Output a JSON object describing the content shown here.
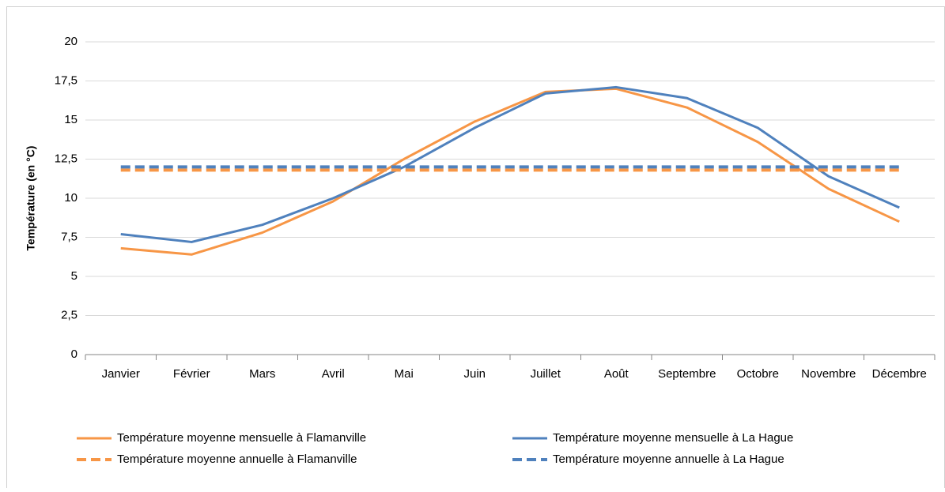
{
  "chart_data": {
    "type": "line",
    "ylabel": "Température (en °C)",
    "categories": [
      "Janvier",
      "Février",
      "Mars",
      "Avril",
      "Mai",
      "Juin",
      "Juillet",
      "Août",
      "Septembre",
      "Octobre",
      "Novembre",
      "Décembre"
    ],
    "series": [
      {
        "name": "Température moyenne mensuelle à Flamanville",
        "color": "#f79646",
        "dash": false,
        "values": [
          6.8,
          6.4,
          7.8,
          9.8,
          12.5,
          14.9,
          16.8,
          17.0,
          15.8,
          13.6,
          10.6,
          8.5
        ]
      },
      {
        "name": "Température moyenne mensuelle à La Hague",
        "color": "#4f81bd",
        "dash": false,
        "values": [
          7.7,
          7.2,
          8.3,
          10.0,
          12.0,
          14.5,
          16.7,
          17.1,
          16.4,
          14.5,
          11.4,
          9.4
        ]
      },
      {
        "name": "Température moyenne annuelle à Flamanville",
        "color": "#f79646",
        "dash": true,
        "values": [
          11.8,
          11.8,
          11.8,
          11.8,
          11.8,
          11.8,
          11.8,
          11.8,
          11.8,
          11.8,
          11.8,
          11.8
        ]
      },
      {
        "name": "Température moyenne annuelle à La Hague",
        "color": "#4f81bd",
        "dash": true,
        "values": [
          12.0,
          12.0,
          12.0,
          12.0,
          12.0,
          12.0,
          12.0,
          12.0,
          12.0,
          12.0,
          12.0,
          12.0
        ]
      }
    ],
    "ylim": [
      0,
      20
    ],
    "yticks": [
      0,
      {
        "value": 2.5,
        "label": "2,5"
      },
      5,
      {
        "value": 7.5,
        "label": "7,5"
      },
      10,
      {
        "value": 12.5,
        "label": "12,5"
      },
      15,
      {
        "value": 17.5,
        "label": "17,5"
      },
      20
    ],
    "grid": true,
    "legend": "bottom"
  }
}
